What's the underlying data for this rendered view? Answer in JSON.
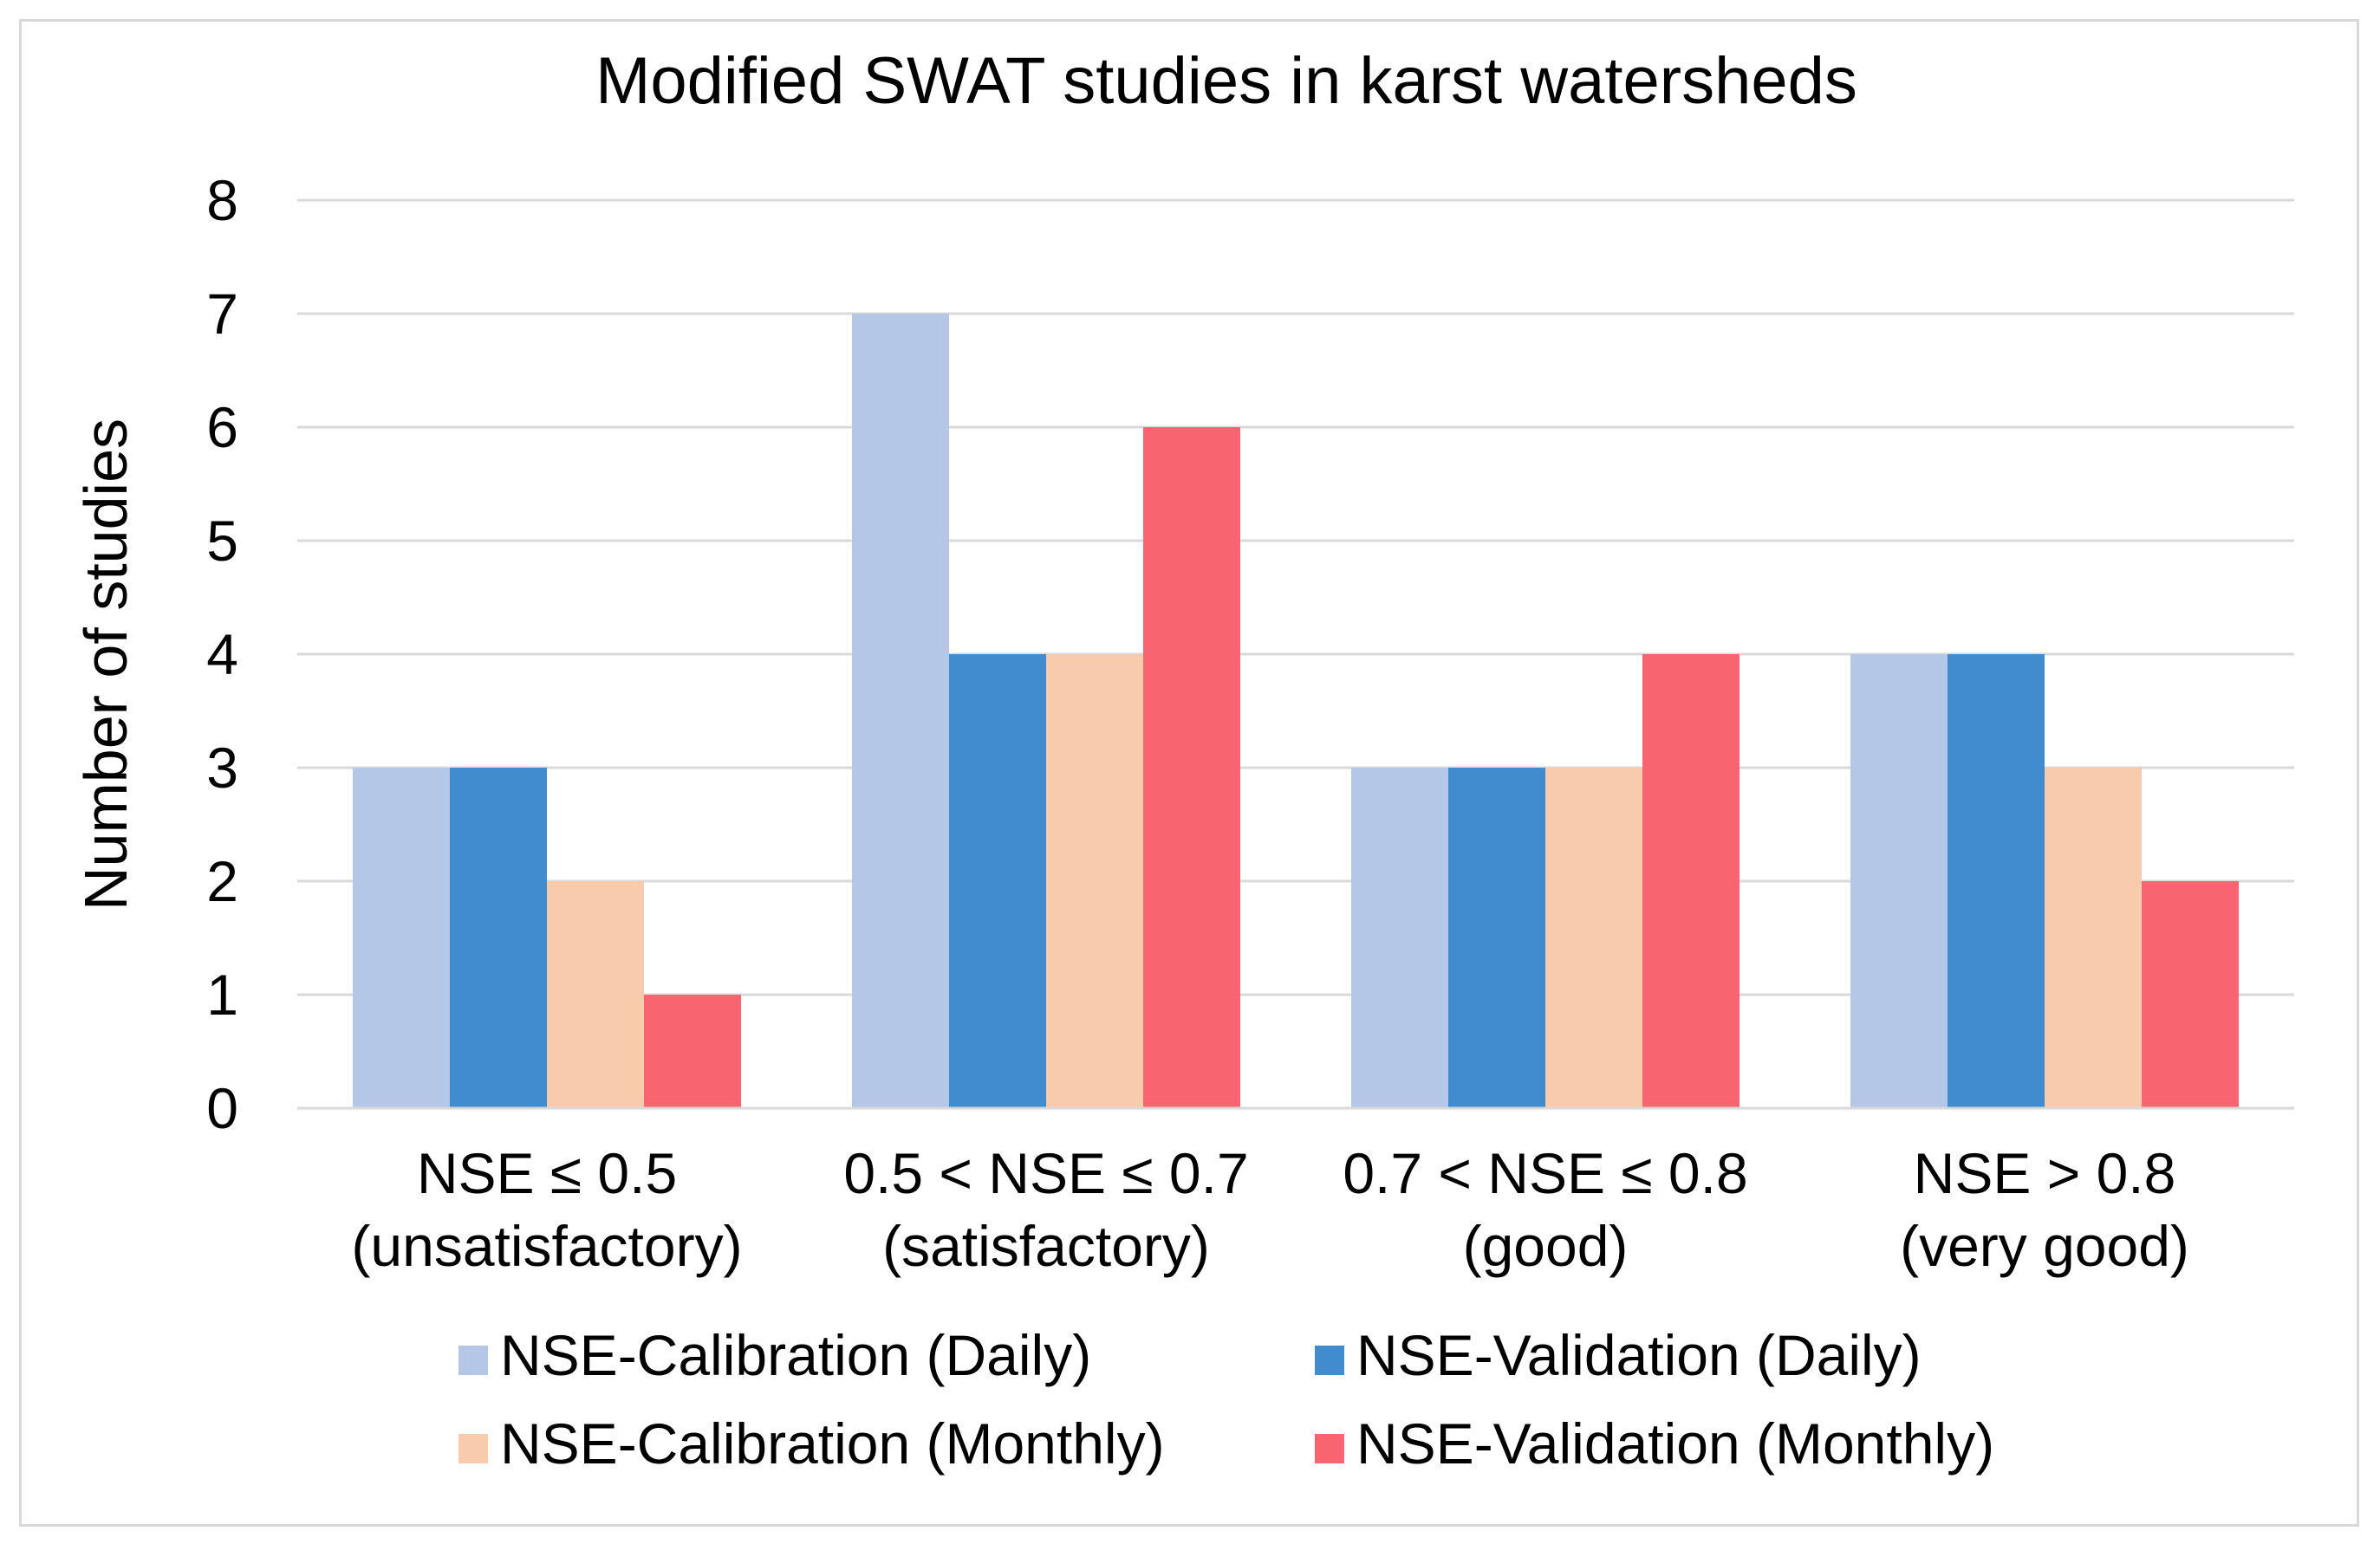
{
  "chart_data": {
    "type": "bar",
    "title": "Modified SWAT studies in karst watersheds",
    "xlabel": "",
    "ylabel": "Number of studies",
    "ylim": [
      0,
      8
    ],
    "yticks": [
      0,
      1,
      2,
      3,
      4,
      5,
      6,
      7,
      8
    ],
    "grid": true,
    "legend_position": "bottom",
    "categories": [
      {
        "line1": "NSE ≤ 0.5",
        "line2": "(unsatisfactory)"
      },
      {
        "line1": "0.5 < NSE ≤ 0.7",
        "line2": "(satisfactory)"
      },
      {
        "line1": "0.7 < NSE ≤ 0.8",
        "line2": "(good)"
      },
      {
        "line1": "NSE > 0.8",
        "line2": "(very good)"
      }
    ],
    "series": [
      {
        "name": "NSE-Calibration (Daily)",
        "color": "#b4c7e7",
        "values": [
          3,
          7,
          3,
          4
        ]
      },
      {
        "name": "NSE-Validation (Daily)",
        "color": "#418ccf",
        "values": [
          3,
          4,
          3,
          4
        ]
      },
      {
        "name": "NSE-Calibration (Monthly)",
        "color": "#f7cbac",
        "values": [
          2,
          4,
          3,
          3
        ]
      },
      {
        "name": "NSE-Validation (Monthly)",
        "color": "#f8646f",
        "values": [
          1,
          6,
          4,
          2
        ]
      }
    ]
  },
  "colors": {
    "gridline": "#d9d9d9",
    "axis": "#d9d9d9",
    "frame": "#d9d9d9"
  }
}
